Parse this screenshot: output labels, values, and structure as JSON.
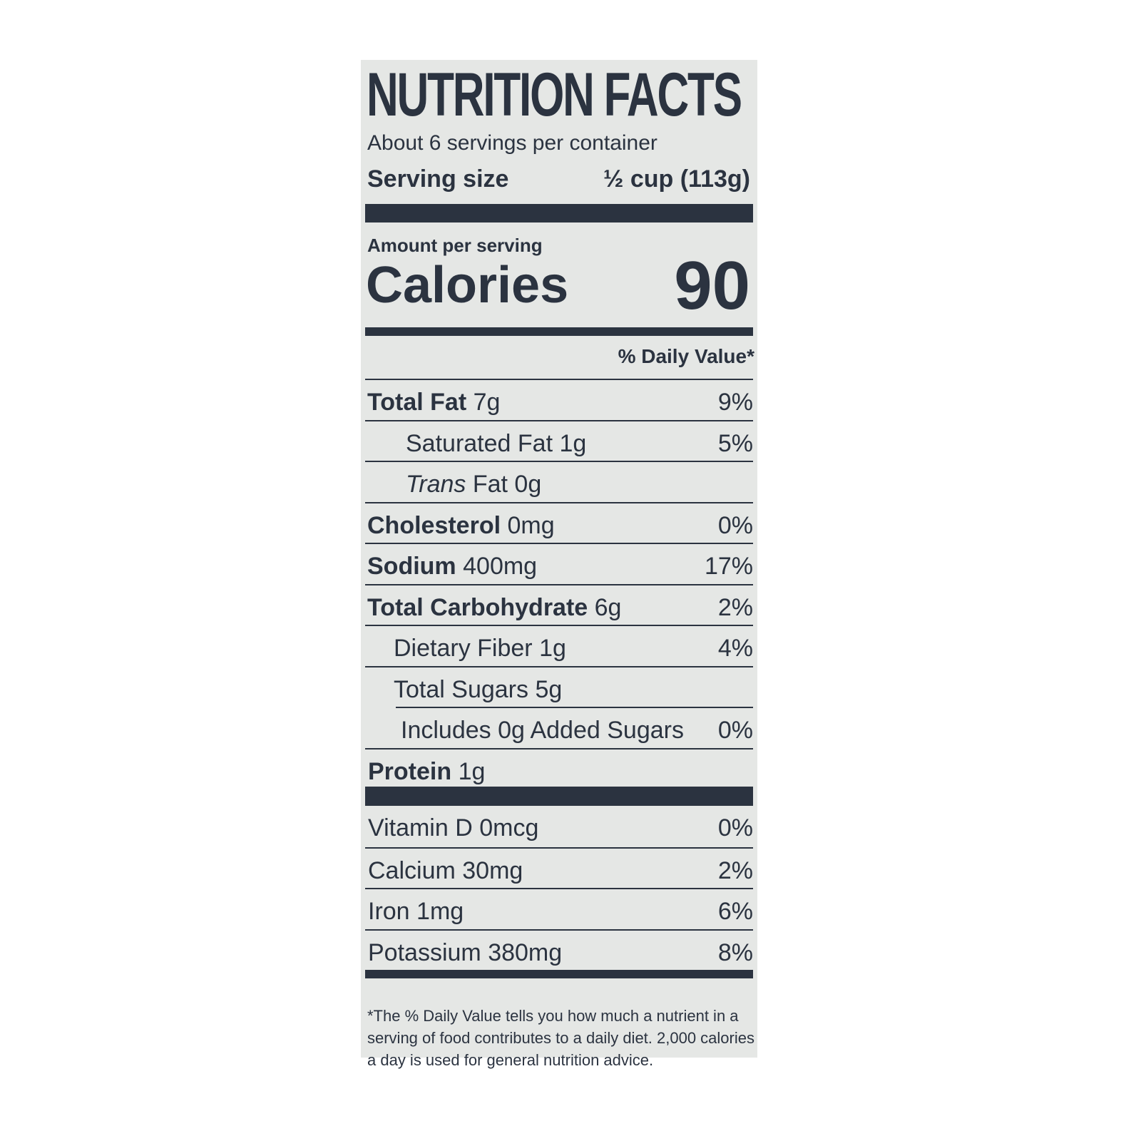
{
  "title": "NUTRITION FACTS",
  "servings_per_container": "About 6 servings per container",
  "serving_size_label": "Serving size",
  "serving_size_value": "½ cup (113g)",
  "amount_per_serving": "Amount per serving",
  "calories_label": "Calories",
  "calories_value": "90",
  "daily_value_header": "% Daily Value*",
  "nutrients": [
    {
      "name": "Total Fat",
      "amount": "7g",
      "dv": "9%"
    },
    {
      "name": "Saturated Fat",
      "amount": "1g",
      "dv": "5%"
    },
    {
      "name": "Trans",
      "name_suffix": "Fat",
      "amount": "0g",
      "dv": ""
    },
    {
      "name": "Cholesterol",
      "amount": "0mg",
      "dv": "0%"
    },
    {
      "name": "Sodium",
      "amount": "400mg",
      "dv": "17%"
    },
    {
      "name": "Total Carbohydrate",
      "amount": "6g",
      "dv": "2%"
    },
    {
      "name": "Dietary Fiber",
      "amount": "1g",
      "dv": "4%"
    },
    {
      "name": "Total Sugars",
      "amount": "5g",
      "dv": ""
    },
    {
      "name": "Includes 0g Added Sugars",
      "amount": "",
      "dv": "0%"
    },
    {
      "name": "Protein",
      "amount": "1g",
      "dv": ""
    }
  ],
  "vitamins": [
    {
      "name": "Vitamin D",
      "amount": "0mcg",
      "dv": "0%"
    },
    {
      "name": "Calcium",
      "amount": "30mg",
      "dv": "2%"
    },
    {
      "name": "Iron",
      "amount": "1mg",
      "dv": "6%"
    },
    {
      "name": "Potassium",
      "amount": "380mg",
      "dv": "8%"
    }
  ],
  "footnote": "*The % Daily Value tells you how much a nutrient in a serving of food contributes to a daily diet. 2,000 calories a day is used for general nutrition advice.",
  "colors": {
    "ink": "#2b3340",
    "label_background": "#e5e7e5"
  }
}
